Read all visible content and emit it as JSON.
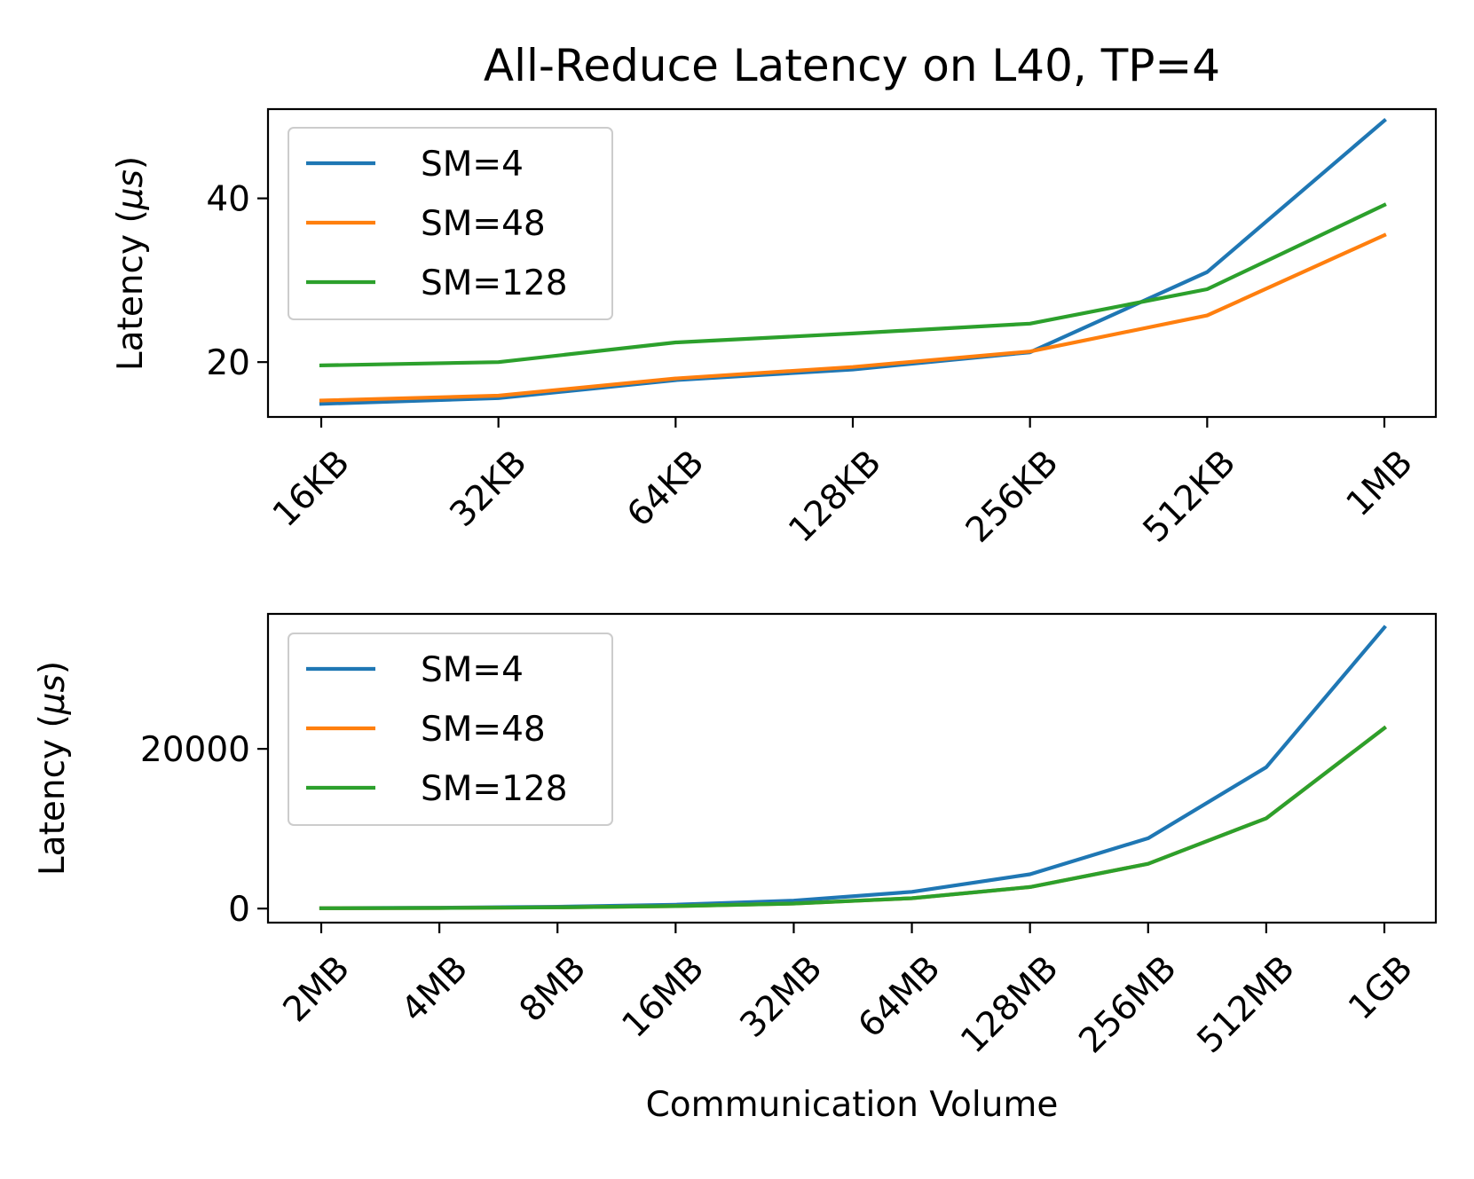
{
  "figure_title": "All-Reduce Latency on L40, TP=4",
  "chart_data": [
    {
      "type": "line",
      "title": "All-Reduce Latency on L40, TP=4",
      "xlabel": "",
      "ylabel": "Latency ($\\mu s$)",
      "ylabel_parts": {
        "before": "Latency (",
        "mu": "μ",
        "s": "s",
        "after": ")"
      },
      "categories": [
        "16KB",
        "32KB",
        "64KB",
        "128KB",
        "256KB",
        "512KB",
        "1MB"
      ],
      "ylim": [
        13.3,
        50.9
      ],
      "yticks": [
        20,
        40
      ],
      "grid": false,
      "legend": "upper-left",
      "series": [
        {
          "name": "SM=4",
          "color": "#1f77b4",
          "values": [
            14.9,
            15.6,
            17.8,
            19.1,
            21.2,
            31.0,
            49.5
          ]
        },
        {
          "name": "SM=48",
          "color": "#ff7f0e",
          "values": [
            15.3,
            15.9,
            18.0,
            19.4,
            21.3,
            25.7,
            35.5
          ]
        },
        {
          "name": "SM=128",
          "color": "#2ca02c",
          "values": [
            19.6,
            20.0,
            22.4,
            23.5,
            24.7,
            28.9,
            39.2
          ]
        }
      ]
    },
    {
      "type": "line",
      "title": "",
      "xlabel": "Communication Volume",
      "ylabel": "Latency ($\\mu s$)",
      "ylabel_parts": {
        "before": "Latency (",
        "mu": "μ",
        "s": "s",
        "after": ")"
      },
      "categories": [
        "2MB",
        "4MB",
        "8MB",
        "16MB",
        "32MB",
        "64MB",
        "128MB",
        "256MB",
        "512MB",
        "1GB"
      ],
      "ylim": [
        -1760,
        36900
      ],
      "yticks": [
        0,
        20000
      ],
      "grid": false,
      "legend": "upper-left",
      "series": [
        {
          "name": "SM=4",
          "color": "#1f77b4",
          "values": [
            50,
            110,
            230,
            480,
            1000,
            2100,
            4300,
            8800,
            17700,
            35200
          ]
        },
        {
          "name": "SM=48",
          "color": "#ff7f0e",
          "values": [
            35,
            75,
            150,
            310,
            630,
            1290,
            2700,
            5600,
            11300,
            22600
          ]
        },
        {
          "name": "SM=128",
          "color": "#2ca02c",
          "values": [
            35,
            75,
            150,
            310,
            630,
            1290,
            2700,
            5600,
            11300,
            22600
          ]
        }
      ]
    }
  ]
}
